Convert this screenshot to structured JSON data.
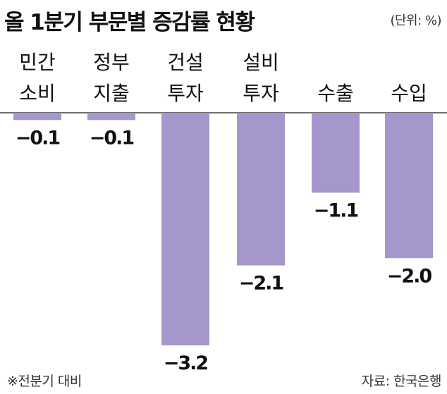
{
  "header": {
    "title": "올 1분기 부문별 증감률 현황",
    "unit": "(단위: %)"
  },
  "footer": {
    "note": "※전분기 대비",
    "source": "자료: 한국은행"
  },
  "colors": {
    "bar": "#a597cc",
    "axis": "#6e6e6e",
    "text": "#111111"
  },
  "chart_data": {
    "type": "bar",
    "title": "올 1분기 부문별 증감률 현황",
    "unit": "%",
    "categories": [
      [
        "민간",
        "소비"
      ],
      [
        "정부",
        "지출"
      ],
      [
        "건설",
        "투자"
      ],
      [
        "설비",
        "투자"
      ],
      [
        "수출"
      ],
      [
        "수입"
      ]
    ],
    "values": [
      -0.1,
      -0.1,
      -3.2,
      -2.1,
      -1.1,
      -2.0
    ],
    "value_labels": [
      "−0.1",
      "−0.1",
      "−3.2",
      "−2.1",
      "−1.1",
      "−2.0"
    ],
    "ylim": [
      -3.2,
      0
    ],
    "grid": false,
    "legend": "none"
  }
}
